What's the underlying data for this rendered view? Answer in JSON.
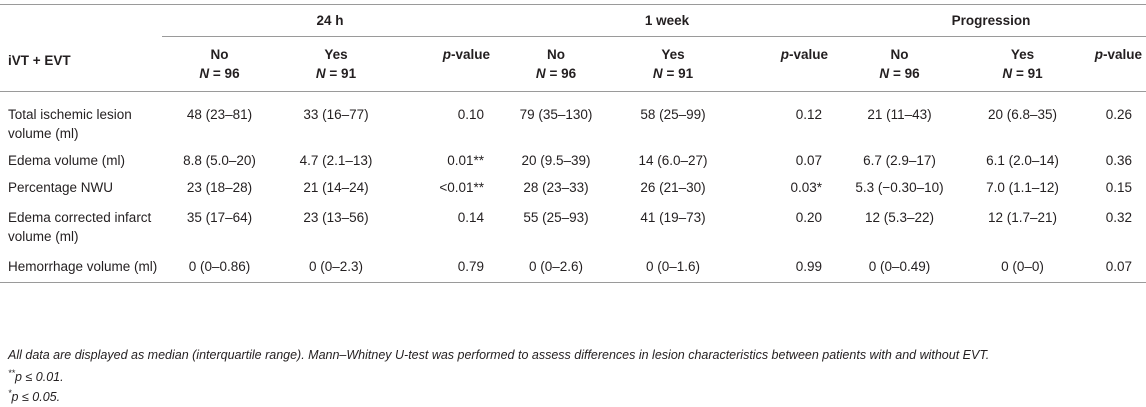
{
  "header": {
    "corner_label": "iVT + EVT",
    "groups": [
      "24 h",
      "1 week",
      "Progression"
    ],
    "no_label": "No",
    "yes_label": "Yes",
    "n_prefix": "N",
    "n_no": "= 96",
    "n_yes": "= 91",
    "p_italic": "p",
    "p_suffix": "-value"
  },
  "rows": [
    {
      "label": "Total ischemic lesion volume (ml)",
      "cells": [
        "48 (23–81)",
        "33 (16–77)",
        "0.10",
        "79 (35–130)",
        "58 (25–99)",
        "0.12",
        "21 (11–43)",
        "20 (6.8–35)",
        "0.26"
      ]
    },
    {
      "label": "Edema volume (ml)",
      "cells": [
        "8.8 (5.0–20)",
        "4.7 (2.1–13)",
        "0.01**",
        "20 (9.5–39)",
        "14 (6.0–27)",
        "0.07",
        "6.7 (2.9–17)",
        "6.1 (2.0–14)",
        "0.36"
      ]
    },
    {
      "label": "Percentage NWU",
      "cells": [
        "23 (18–28)",
        "21 (14–24)",
        "<0.01**",
        "28 (23–33)",
        "26 (21–30)",
        "0.03*",
        "5.3 (−0.30–10)",
        "7.0 (1.1–12)",
        "0.15"
      ]
    },
    {
      "label": "Edema corrected infarct volume (ml)",
      "cells": [
        "35 (17–64)",
        "23 (13–56)",
        "0.14",
        "55 (25–93)",
        "41 (19–73)",
        "0.20",
        "12 (5.3–22)",
        "12 (1.7–21)",
        "0.32"
      ]
    },
    {
      "label": "Hemorrhage volume (ml)",
      "cells": [
        "0 (0–0.86)",
        "0 (0–2.3)",
        "0.79",
        "0 (0–2.6)",
        "0 (0–1.6)",
        "0.99",
        "0 (0–0.49)",
        "0 (0–0)",
        "0.07"
      ]
    }
  ],
  "footnotes": {
    "note": "All data are displayed as median (interquartile range). Mann–Whitney U-test was performed to assess differences in lesion characteristics between patients with and without EVT.",
    "f1_mark": "**",
    "f1_text": "p ≤ 0.01.",
    "f2_mark": "*",
    "f2_text": "p ≤ 0.05."
  }
}
